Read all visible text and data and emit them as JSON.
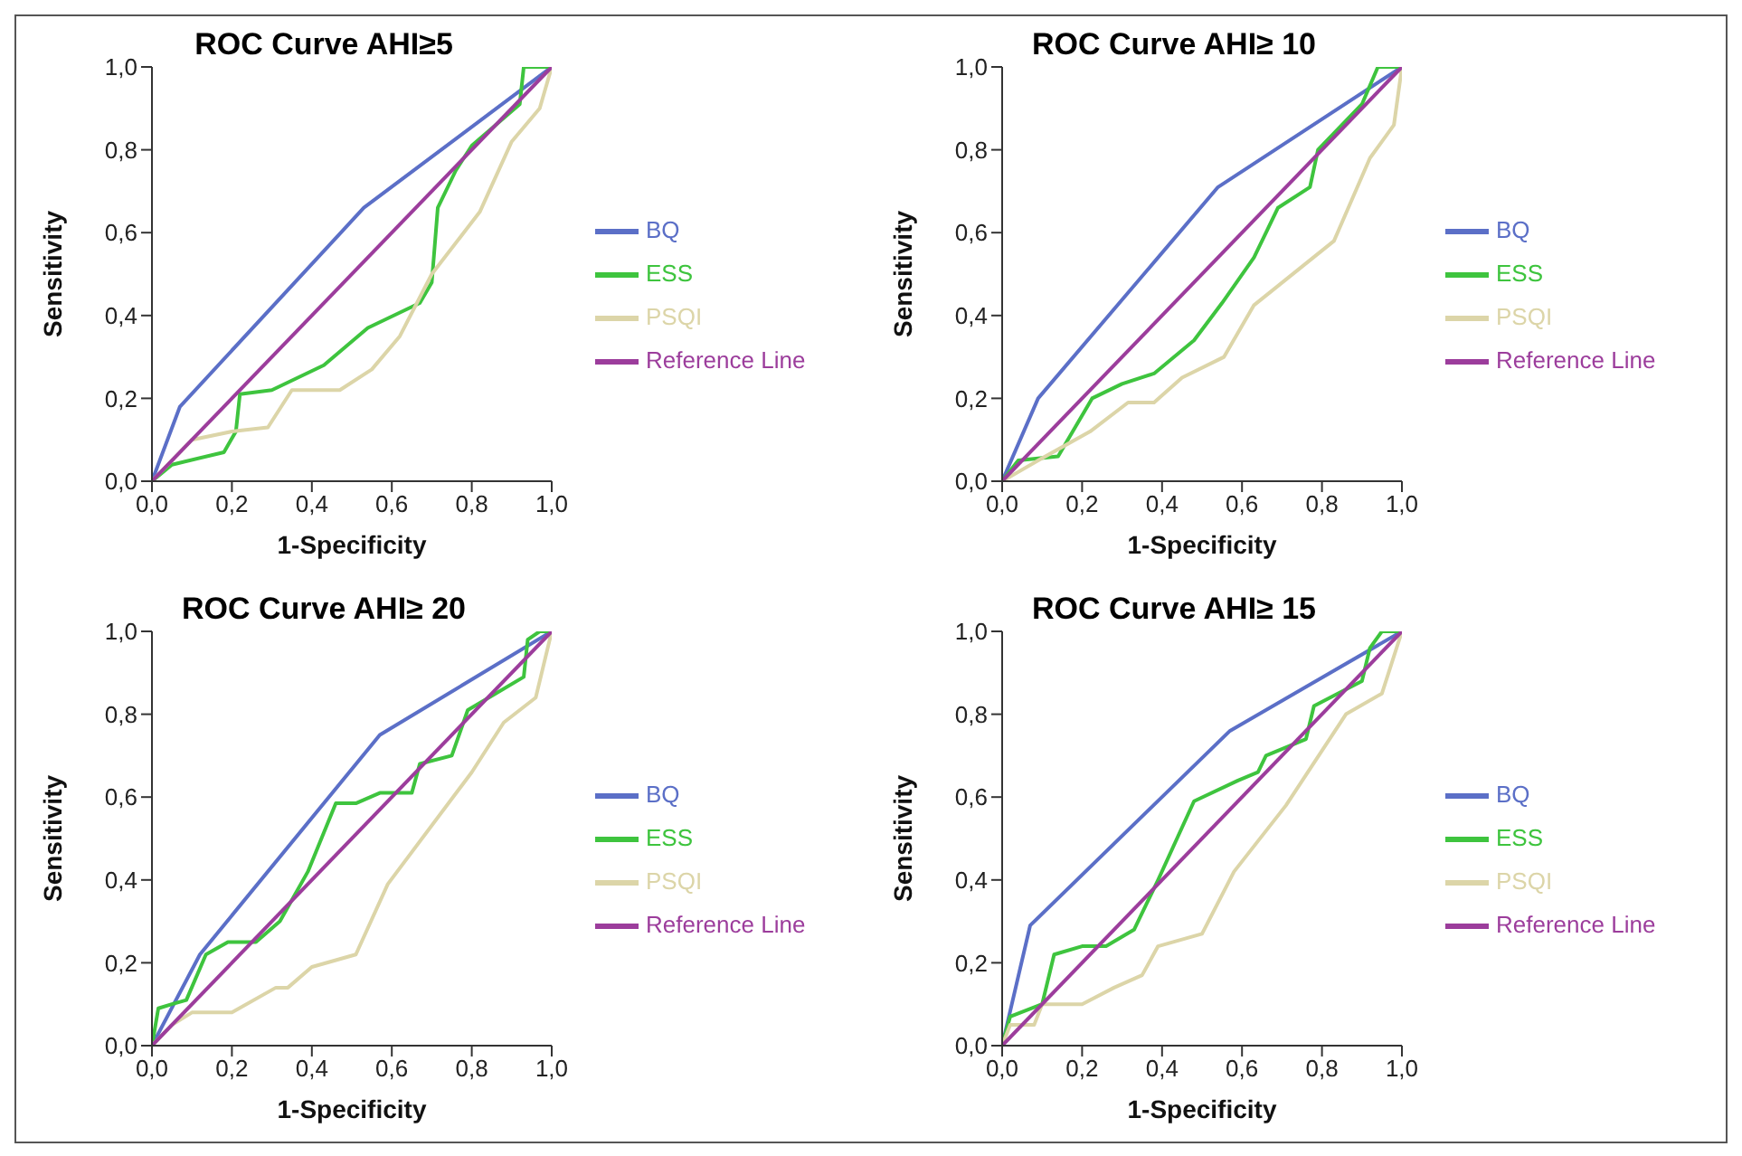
{
  "chart_data": [
    {
      "type": "line",
      "title": "ROC Curve AHI≥5",
      "xlabel": "1-Specificity",
      "ylabel": "Sensitivity",
      "xlim": [
        0,
        1
      ],
      "ylim": [
        0,
        1
      ],
      "xticks": [
        {
          "value": 0,
          "label": "0,0"
        },
        {
          "value": 0.2,
          "label": "0,2"
        },
        {
          "value": 0.4,
          "label": "0,4"
        },
        {
          "value": 0.6,
          "label": "0,6"
        },
        {
          "value": 0.8,
          "label": "0,8"
        },
        {
          "value": 1,
          "label": "1,0"
        }
      ],
      "yticks": [
        {
          "value": 0,
          "label": "0,0"
        },
        {
          "value": 0.2,
          "label": "0,2"
        },
        {
          "value": 0.4,
          "label": "0,4"
        },
        {
          "value": 0.6,
          "label": "0,6"
        },
        {
          "value": 0.8,
          "label": "0,8"
        },
        {
          "value": 1,
          "label": "1,0"
        }
      ],
      "legend": "right",
      "marker": "none",
      "line_style": "solid",
      "series": [
        {
          "name": "BQ",
          "color": "#5b6fc7",
          "x": [
            0,
            0.07,
            0.53,
            1
          ],
          "values": [
            0,
            0.18,
            0.66,
            1
          ]
        },
        {
          "name": "ESS",
          "color": "#3ec43e",
          "x": [
            0,
            0.05,
            0.18,
            0.21,
            0.22,
            0.3,
            0.43,
            0.54,
            0.67,
            0.7,
            0.715,
            0.76,
            0.8,
            0.92,
            0.93,
            1
          ],
          "values": [
            0,
            0.04,
            0.07,
            0.12,
            0.21,
            0.22,
            0.28,
            0.37,
            0.43,
            0.48,
            0.66,
            0.75,
            0.81,
            0.91,
            1,
            1
          ]
        },
        {
          "name": "PSQI",
          "color": "#dcd5a8",
          "x": [
            0,
            0.1,
            0.2,
            0.29,
            0.35,
            0.47,
            0.55,
            0.62,
            0.7,
            0.82,
            0.9,
            0.97,
            1
          ],
          "values": [
            0,
            0.1,
            0.12,
            0.13,
            0.22,
            0.22,
            0.27,
            0.35,
            0.5,
            0.65,
            0.82,
            0.9,
            1
          ]
        },
        {
          "name": "Reference Line",
          "color": "#9c3d9c",
          "x": [
            0,
            1
          ],
          "values": [
            0,
            1
          ]
        }
      ]
    },
    {
      "type": "line",
      "title": "ROC Curve AHI≥ 10",
      "xlabel": "1-Specificity",
      "ylabel": "Sensitivity",
      "xlim": [
        0,
        1
      ],
      "ylim": [
        0,
        1
      ],
      "xticks": [
        {
          "value": 0,
          "label": "0,0"
        },
        {
          "value": 0.2,
          "label": "0,2"
        },
        {
          "value": 0.4,
          "label": "0,4"
        },
        {
          "value": 0.6,
          "label": "0,6"
        },
        {
          "value": 0.8,
          "label": "0,8"
        },
        {
          "value": 1,
          "label": "1,0"
        }
      ],
      "yticks": [
        {
          "value": 0,
          "label": "0,0"
        },
        {
          "value": 0.2,
          "label": "0,2"
        },
        {
          "value": 0.4,
          "label": "0,4"
        },
        {
          "value": 0.6,
          "label": "0,6"
        },
        {
          "value": 0.8,
          "label": "0,8"
        },
        {
          "value": 1,
          "label": "1,0"
        }
      ],
      "legend": "right",
      "marker": "none",
      "line_style": "solid",
      "series": [
        {
          "name": "BQ",
          "color": "#5b6fc7",
          "x": [
            0,
            0.09,
            0.54,
            1
          ],
          "values": [
            0,
            0.2,
            0.71,
            1
          ]
        },
        {
          "name": "ESS",
          "color": "#3ec43e",
          "x": [
            0,
            0.04,
            0.14,
            0.225,
            0.3,
            0.38,
            0.48,
            0.55,
            0.63,
            0.69,
            0.77,
            0.79,
            0.9,
            0.94,
            1
          ],
          "values": [
            0,
            0.05,
            0.06,
            0.2,
            0.235,
            0.26,
            0.34,
            0.43,
            0.54,
            0.66,
            0.71,
            0.8,
            0.91,
            1,
            1
          ]
        },
        {
          "name": "PSQI",
          "color": "#dcd5a8",
          "x": [
            0,
            0.09,
            0.22,
            0.315,
            0.38,
            0.45,
            0.555,
            0.63,
            0.83,
            0.92,
            0.98,
            1
          ],
          "values": [
            0,
            0.05,
            0.12,
            0.19,
            0.19,
            0.25,
            0.3,
            0.425,
            0.58,
            0.78,
            0.86,
            1
          ]
        },
        {
          "name": "Reference Line",
          "color": "#9c3d9c",
          "x": [
            0,
            1
          ],
          "values": [
            0,
            1
          ]
        }
      ]
    },
    {
      "type": "line",
      "title": "ROC Curve AHI≥ 20",
      "xlabel": "1-Specificity",
      "ylabel": "Sensitivity",
      "xlim": [
        0,
        1
      ],
      "ylim": [
        0,
        1
      ],
      "xticks": [
        {
          "value": 0,
          "label": "0,0"
        },
        {
          "value": 0.2,
          "label": "0,2"
        },
        {
          "value": 0.4,
          "label": "0,4"
        },
        {
          "value": 0.6,
          "label": "0,6"
        },
        {
          "value": 0.8,
          "label": "0,8"
        },
        {
          "value": 1,
          "label": "1,0"
        }
      ],
      "yticks": [
        {
          "value": 0,
          "label": "0,0"
        },
        {
          "value": 0.2,
          "label": "0,2"
        },
        {
          "value": 0.4,
          "label": "0,4"
        },
        {
          "value": 0.6,
          "label": "0,6"
        },
        {
          "value": 0.8,
          "label": "0,8"
        },
        {
          "value": 1,
          "label": "1,0"
        }
      ],
      "legend": "right",
      "marker": "none",
      "line_style": "solid",
      "series": [
        {
          "name": "BQ",
          "color": "#5b6fc7",
          "x": [
            0,
            0.12,
            0.57,
            1
          ],
          "values": [
            0,
            0.22,
            0.75,
            1
          ]
        },
        {
          "name": "ESS",
          "color": "#3ec43e",
          "x": [
            0,
            0.016,
            0.05,
            0.086,
            0.135,
            0.19,
            0.26,
            0.32,
            0.39,
            0.46,
            0.51,
            0.57,
            0.65,
            0.67,
            0.75,
            0.79,
            0.93,
            0.94,
            0.97,
            1
          ],
          "values": [
            0,
            0.09,
            0.1,
            0.11,
            0.22,
            0.25,
            0.25,
            0.3,
            0.42,
            0.585,
            0.585,
            0.61,
            0.61,
            0.68,
            0.7,
            0.81,
            0.89,
            0.98,
            1,
            1
          ]
        },
        {
          "name": "PSQI",
          "color": "#dcd5a8",
          "x": [
            0,
            0.05,
            0.1,
            0.2,
            0.31,
            0.34,
            0.4,
            0.51,
            0.59,
            0.8,
            0.88,
            0.96,
            1
          ],
          "values": [
            0,
            0.05,
            0.08,
            0.08,
            0.14,
            0.14,
            0.19,
            0.22,
            0.39,
            0.66,
            0.78,
            0.84,
            1
          ]
        },
        {
          "name": "Reference Line",
          "color": "#9c3d9c",
          "x": [
            0,
            1
          ],
          "values": [
            0,
            1
          ]
        }
      ]
    },
    {
      "type": "line",
      "title": "ROC Curve AHI≥ 15",
      "xlabel": "1-Specificity",
      "ylabel": "Sensitivity",
      "xlim": [
        0,
        1
      ],
      "ylim": [
        0,
        1
      ],
      "xticks": [
        {
          "value": 0,
          "label": "0,0"
        },
        {
          "value": 0.2,
          "label": "0,2"
        },
        {
          "value": 0.4,
          "label": "0,4"
        },
        {
          "value": 0.6,
          "label": "0,6"
        },
        {
          "value": 0.8,
          "label": "0,8"
        },
        {
          "value": 1,
          "label": "1,0"
        }
      ],
      "yticks": [
        {
          "value": 0,
          "label": "0,0"
        },
        {
          "value": 0.2,
          "label": "0,2"
        },
        {
          "value": 0.4,
          "label": "0,4"
        },
        {
          "value": 0.6,
          "label": "0,6"
        },
        {
          "value": 0.8,
          "label": "0,8"
        },
        {
          "value": 1,
          "label": "1,0"
        }
      ],
      "legend": "right",
      "marker": "none",
      "line_style": "solid",
      "series": [
        {
          "name": "BQ",
          "color": "#5b6fc7",
          "x": [
            0,
            0.07,
            0.57,
            1
          ],
          "values": [
            0,
            0.29,
            0.76,
            1
          ]
        },
        {
          "name": "ESS",
          "color": "#3ec43e",
          "x": [
            0,
            0.02,
            0.1,
            0.13,
            0.2,
            0.26,
            0.33,
            0.39,
            0.48,
            0.59,
            0.64,
            0.66,
            0.76,
            0.78,
            0.9,
            0.92,
            0.95,
            1
          ],
          "values": [
            0,
            0.07,
            0.1,
            0.22,
            0.24,
            0.24,
            0.28,
            0.4,
            0.59,
            0.64,
            0.66,
            0.7,
            0.74,
            0.82,
            0.88,
            0.96,
            1,
            1
          ]
        },
        {
          "name": "PSQI",
          "color": "#dcd5a8",
          "x": [
            0,
            0.02,
            0.08,
            0.1,
            0.2,
            0.28,
            0.35,
            0.39,
            0.5,
            0.58,
            0.71,
            0.86,
            0.95,
            1
          ],
          "values": [
            0,
            0.05,
            0.05,
            0.1,
            0.1,
            0.14,
            0.17,
            0.24,
            0.27,
            0.42,
            0.58,
            0.8,
            0.85,
            1
          ]
        },
        {
          "name": "Reference Line",
          "color": "#9c3d9c",
          "x": [
            0,
            1
          ],
          "values": [
            0,
            1
          ]
        }
      ]
    }
  ]
}
